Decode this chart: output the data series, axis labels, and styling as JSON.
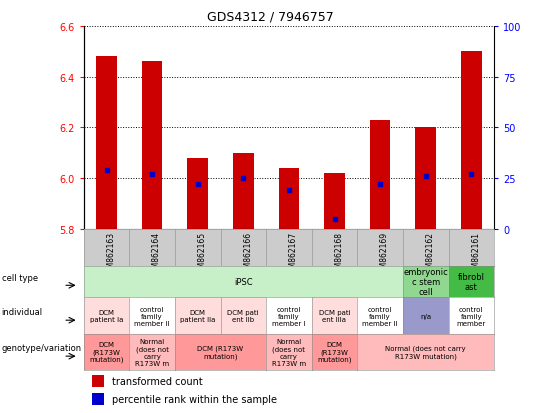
{
  "title": "GDS4312 / 7946757",
  "samples": [
    "GSM862163",
    "GSM862164",
    "GSM862165",
    "GSM862166",
    "GSM862167",
    "GSM862168",
    "GSM862169",
    "GSM862162",
    "GSM862161"
  ],
  "transformed_counts": [
    6.48,
    6.46,
    6.08,
    6.1,
    6.04,
    6.02,
    6.23,
    6.2,
    6.5
  ],
  "percentile_ranks": [
    29,
    27,
    22,
    25,
    19,
    5,
    22,
    26,
    27
  ],
  "ylim": [
    5.8,
    6.6
  ],
  "yticks": [
    5.8,
    6.0,
    6.2,
    6.4,
    6.6
  ],
  "right_yticks": [
    0,
    25,
    50,
    75,
    100
  ],
  "bar_color": "#cc0000",
  "dot_color": "#0000cc",
  "bar_base": 5.8,
  "header_bg": "#cccccc",
  "cell_type_specs": [
    {
      "span": 7,
      "label": "iPSC",
      "color": "#c8f0c8"
    },
    {
      "span": 1,
      "label": "embryonic\nc stem\ncell",
      "color": "#90d890"
    },
    {
      "span": 1,
      "label": "fibrobl\nast",
      "color": "#44bb44"
    }
  ],
  "individual_cells": [
    {
      "label": "DCM\npatient Ia",
      "color": "#ffdddd"
    },
    {
      "label": "control\nfamily\nmember II",
      "color": "#ffffff"
    },
    {
      "label": "DCM\npatient IIa",
      "color": "#ffdddd"
    },
    {
      "label": "DCM pati\nent IIb",
      "color": "#ffdddd"
    },
    {
      "label": "control\nfamily\nmember I",
      "color": "#ffffff"
    },
    {
      "label": "DCM pati\nent IIIa",
      "color": "#ffdddd"
    },
    {
      "label": "control\nfamily\nmember II",
      "color": "#ffffff"
    },
    {
      "label": "n/a",
      "color": "#9999cc"
    },
    {
      "label": "control\nfamily\nmember",
      "color": "#ffffff"
    }
  ],
  "genotype_specs": [
    {
      "span": 1,
      "label": "DCM\n(R173W\nmutation)",
      "color": "#ff9999"
    },
    {
      "span": 1,
      "label": "Normal\n(does not\ncarry\nR173W m",
      "color": "#ffbbbb"
    },
    {
      "span": 2,
      "label": "DCM (R173W\nmutation)",
      "color": "#ff9999"
    },
    {
      "span": 1,
      "label": "Normal\n(does not\ncarry\nR173W m",
      "color": "#ffbbbb"
    },
    {
      "span": 1,
      "label": "DCM\n(R173W\nmutation)",
      "color": "#ff9999"
    },
    {
      "span": 3,
      "label": "Normal (does not carry\nR173W mutation)",
      "color": "#ffbbbb"
    }
  ],
  "row_labels": [
    {
      "text": "cell type",
      "y_key": "celltype"
    },
    {
      "text": "individual",
      "y_key": "individual"
    },
    {
      "text": "genotype/variation",
      "y_key": "genotype"
    }
  ]
}
